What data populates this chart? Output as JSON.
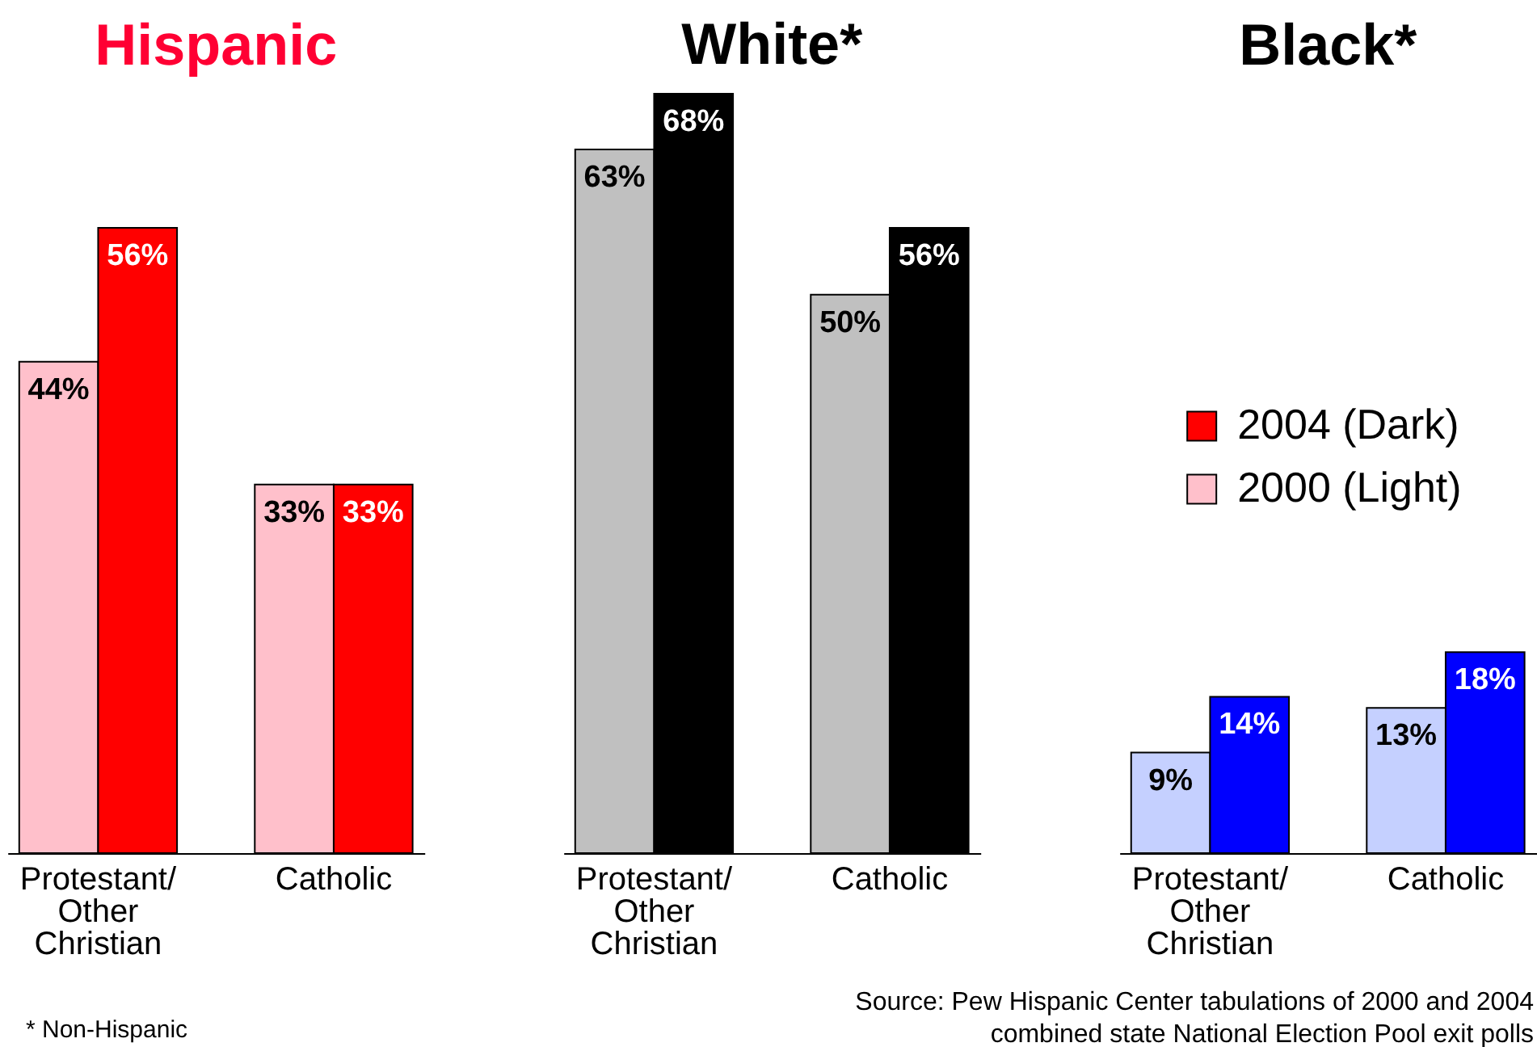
{
  "chart_data": [
    {
      "type": "bar",
      "title": "Hispanic",
      "categories": [
        "Protestant/ Other Christian",
        "Catholic"
      ],
      "series": [
        {
          "name": "2000 (Light)",
          "color": "#ffc0cb",
          "values": [
            44,
            33
          ],
          "value_labels": [
            "44%",
            "33%"
          ]
        },
        {
          "name": "2004 (Dark)",
          "color": "#ff0000",
          "values": [
            56,
            33
          ],
          "value_labels": [
            "56%",
            "33%"
          ]
        }
      ],
      "legend": "right",
      "annotations": [
        "* Non-Hispanic"
      ]
    },
    {
      "type": "bar",
      "title": "White*",
      "categories": [
        "Protestant/ Other Christian",
        "Catholic"
      ],
      "series": [
        {
          "color": "#c0c0c0",
          "values": [
            63,
            50
          ],
          "value_labels": [
            "63%",
            "50%"
          ]
        },
        {
          "color": "#000000",
          "values": [
            68,
            56
          ],
          "value_labels": [
            "68%",
            "56%"
          ]
        }
      ]
    },
    {
      "type": "bar",
      "title": "Black*",
      "categories": [
        "Protestant/ Other Christian",
        "Catholic"
      ],
      "series": [
        {
          "color": "#c5d0ff",
          "values": [
            9,
            13
          ],
          "value_labels": [
            "9%",
            "13%"
          ]
        },
        {
          "color": "#0000ff",
          "values": [
            14,
            18
          ],
          "value_labels": [
            "14%",
            "18%"
          ]
        }
      ],
      "annotations": [
        "Source: Pew Hispanic Center tabulations of 2000 and 2004 combined state National Election Pool exit polls"
      ]
    }
  ]
}
